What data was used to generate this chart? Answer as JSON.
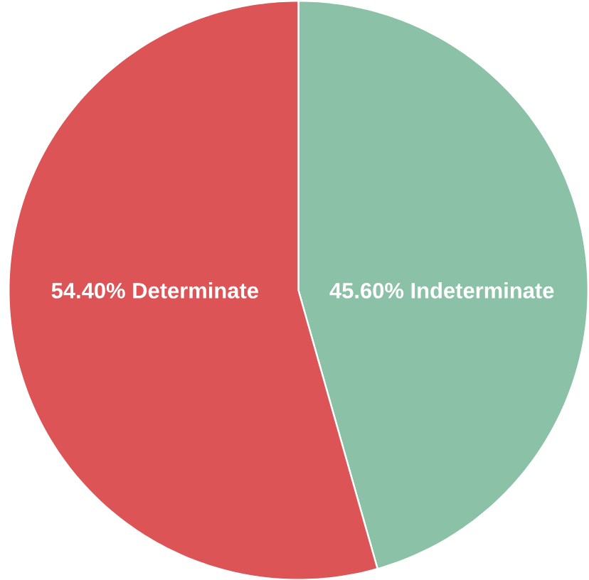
{
  "chart_data": {
    "type": "pie",
    "categories": [
      "Indeterminate",
      "Determinate"
    ],
    "values": [
      45.6,
      54.4
    ],
    "colors": [
      "#8bc2a7",
      "#dc5456"
    ],
    "value_labels": [
      "45.60%",
      "54.40%"
    ]
  }
}
